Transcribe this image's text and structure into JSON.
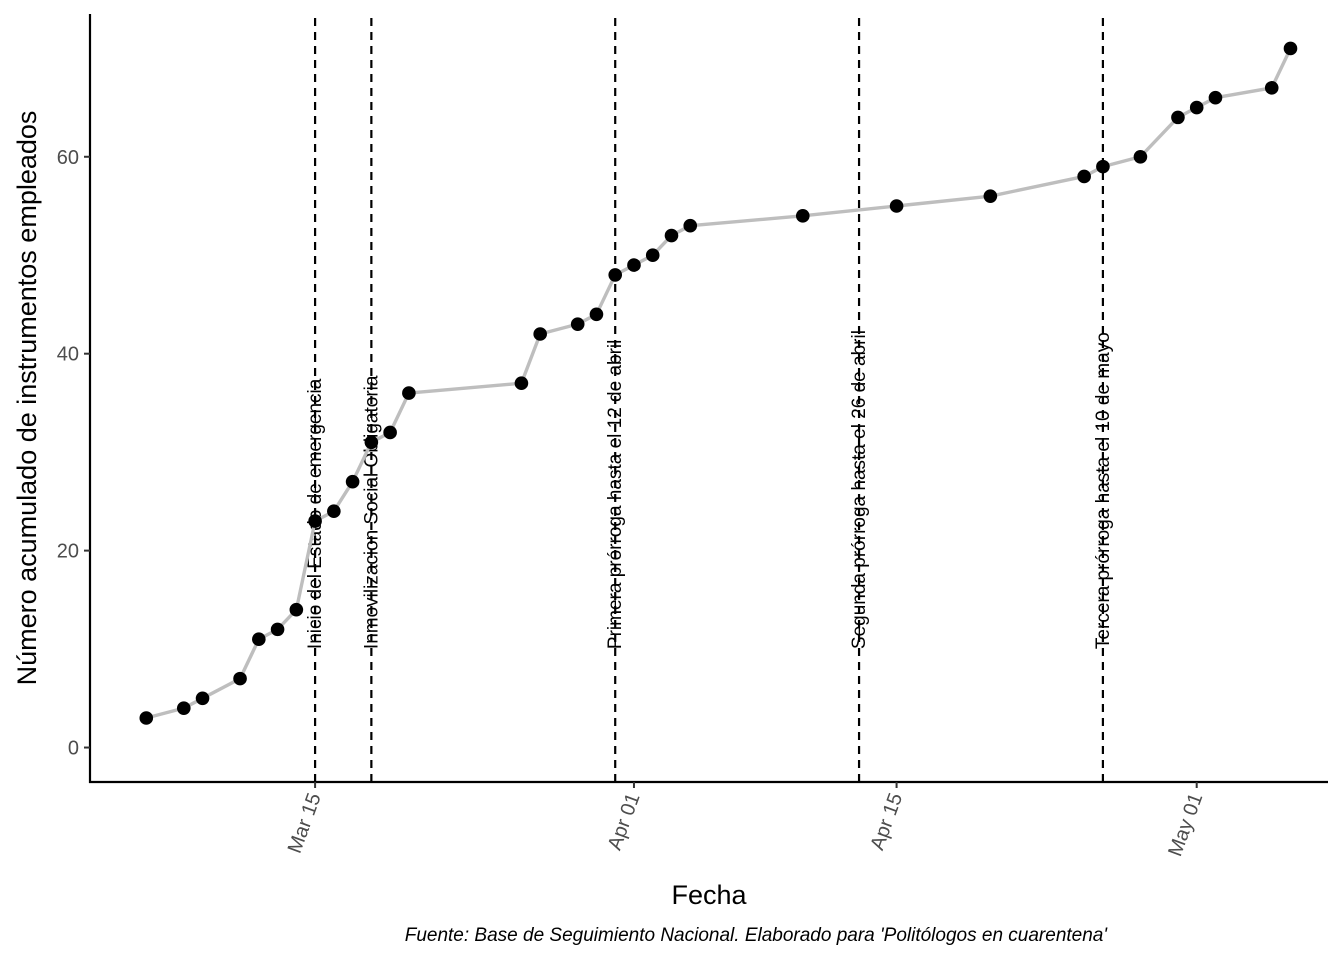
{
  "chart_data": {
    "type": "line",
    "title": "",
    "xlabel": "Fecha",
    "ylabel": "Número acumulado de instrumentos empleados",
    "caption": "Fuente: Base de Seguimiento Nacional. Elaborado para 'Politólogos en cuarentena'",
    "xlim": [
      "2020-03-03",
      "2020-05-08"
    ],
    "ylim": [
      -3.5,
      74.5
    ],
    "x_ticks": [
      {
        "date": "2020-03-15",
        "label": "Mar 15"
      },
      {
        "date": "2020-04-01",
        "label": "Apr 01"
      },
      {
        "date": "2020-04-15",
        "label": "Apr 15"
      },
      {
        "date": "2020-05-01",
        "label": "May 01"
      }
    ],
    "y_ticks": [
      0,
      20,
      40,
      60
    ],
    "grid": false,
    "legend": "none",
    "line_color": "#bebebe",
    "point_color": "#000000",
    "events": [
      {
        "date": "2020-03-15",
        "label": "Inicio del Estado de emergencia"
      },
      {
        "date": "2020-03-18",
        "label": "Inmovilizacion Social Obligatoria"
      },
      {
        "date": "2020-03-31",
        "label": "Primera prórroga hasta el 12 de abril"
      },
      {
        "date": "2020-04-13",
        "label": "Segunda prórroga hasta el 26 de abril"
      },
      {
        "date": "2020-04-26",
        "label": "Tercera prórroga hasta el 10 de mayo"
      }
    ],
    "series": [
      {
        "points": [
          {
            "x": "2020-03-06",
            "y": 3
          },
          {
            "x": "2020-03-08",
            "y": 4
          },
          {
            "x": "2020-03-09",
            "y": 5
          },
          {
            "x": "2020-03-11",
            "y": 7
          },
          {
            "x": "2020-03-12",
            "y": 11
          },
          {
            "x": "2020-03-13",
            "y": 12
          },
          {
            "x": "2020-03-14",
            "y": 14
          },
          {
            "x": "2020-03-15",
            "y": 23
          },
          {
            "x": "2020-03-16",
            "y": 24
          },
          {
            "x": "2020-03-17",
            "y": 27
          },
          {
            "x": "2020-03-18",
            "y": 31
          },
          {
            "x": "2020-03-19",
            "y": 32
          },
          {
            "x": "2020-03-20",
            "y": 36
          },
          {
            "x": "2020-03-26",
            "y": 37
          },
          {
            "x": "2020-03-27",
            "y": 42
          },
          {
            "x": "2020-03-29",
            "y": 43
          },
          {
            "x": "2020-03-30",
            "y": 44
          },
          {
            "x": "2020-03-31",
            "y": 48
          },
          {
            "x": "2020-04-01",
            "y": 49
          },
          {
            "x": "2020-04-02",
            "y": 50
          },
          {
            "x": "2020-04-03",
            "y": 52
          },
          {
            "x": "2020-04-04",
            "y": 53
          },
          {
            "x": "2020-04-10",
            "y": 54
          },
          {
            "x": "2020-04-15",
            "y": 55
          },
          {
            "x": "2020-04-20",
            "y": 56
          },
          {
            "x": "2020-04-25",
            "y": 58
          },
          {
            "x": "2020-04-26",
            "y": 59
          },
          {
            "x": "2020-04-28",
            "y": 60
          },
          {
            "x": "2020-04-30",
            "y": 64
          },
          {
            "x": "2020-05-01",
            "y": 65
          },
          {
            "x": "2020-05-02",
            "y": 66
          },
          {
            "x": "2020-05-05",
            "y": 67
          },
          {
            "x": "2020-05-06",
            "y": 71
          }
        ]
      }
    ]
  }
}
